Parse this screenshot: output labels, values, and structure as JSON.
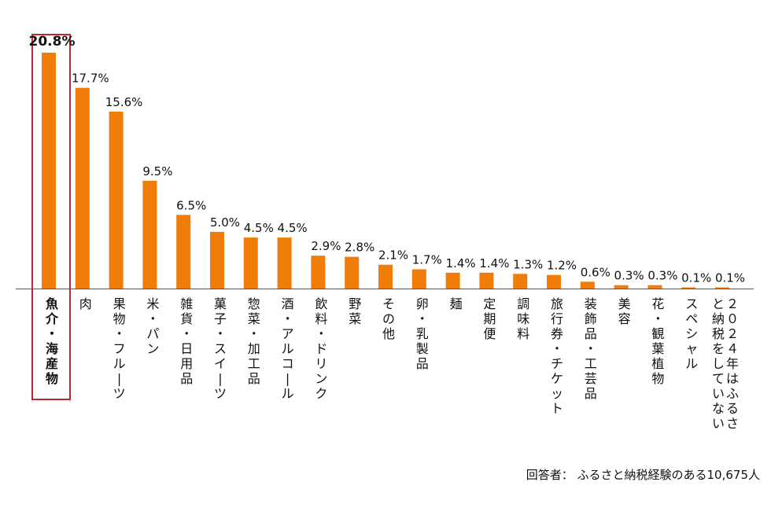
{
  "colors": {
    "bar": "#f07d0a",
    "highlight_frame": "#c0282e",
    "axis": "#555555",
    "text": "#111111"
  },
  "chart_data": {
    "type": "bar",
    "categories": [
      "魚介・海産物",
      "肉",
      "果物・フルーツ",
      "米・パン",
      "雑貨・日用品",
      "菓子・スイーツ",
      "惣菜・加工品",
      "酒・アルコール",
      "飲料・ドリンク",
      "野菜",
      "その他",
      "卵・乳製品",
      "麺",
      "定期便",
      "調味料",
      "旅行券・チケット",
      "装飾品・工芸品",
      "美容",
      "花・観葉植物",
      "スペシャル",
      "２０２４年はふるさと納税をしていない"
    ],
    "values": [
      20.8,
      17.7,
      15.6,
      9.5,
      6.5,
      5.0,
      4.5,
      4.5,
      2.9,
      2.8,
      2.1,
      1.7,
      1.4,
      1.4,
      1.3,
      1.2,
      0.6,
      0.3,
      0.3,
      0.1,
      0.1
    ],
    "data_labels": [
      "20.8%",
      "17.7%",
      "15.6%",
      "9.5%",
      "6.5%",
      "5.0%",
      "4.5%",
      "4.5%",
      "2.9%",
      "2.8%",
      "2.1%",
      "1.7%",
      "1.4%",
      "1.4%",
      "1.3%",
      "1.2%",
      "0.6%",
      "0.3%",
      "0.3%",
      "0.1%",
      "0.1%"
    ],
    "highlight_index": 0,
    "ylim": [
      0,
      21
    ],
    "grid": false,
    "legend": "none"
  },
  "note": "回答者： ふるさと納税経験のある10,675人"
}
